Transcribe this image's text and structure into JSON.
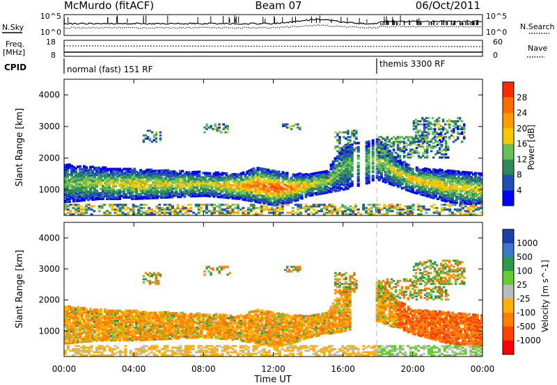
{
  "header": {
    "station": "McMurdo (fitACF)",
    "beam": "Beam 07",
    "date": "06/Oct/2011"
  },
  "noise_panel": {
    "left_label": "N.Sky",
    "right_label": "N.Search",
    "tick_top_left": "10^5",
    "tick_bottom_left": "10^0",
    "tick_top_right": "10^5",
    "tick_bottom_right": "10^0"
  },
  "freq_panel": {
    "left_label_1": "Freq.",
    "left_label_2": "[MHz]",
    "right_label": "Nave",
    "tick_top_left": "18",
    "tick_bottom_left": "8",
    "tick_top_right": "60",
    "tick_bottom_right": "0"
  },
  "cpid_panel": {
    "label": "CPID",
    "mode1": "normal (fast) 151 RF",
    "mode2": "themis 3300 RF"
  },
  "x_axis": {
    "label": "Time UT",
    "ticks": [
      "00:00",
      "04:00",
      "08:00",
      "12:00",
      "16:00",
      "20:00",
      "00:00"
    ]
  },
  "y_axis": {
    "label": "Slant Range [km]",
    "ticks": [
      "1000",
      "2000",
      "3000",
      "4000"
    ]
  },
  "power_colorbar": {
    "label": "Power [dB]",
    "ticks": [
      "4",
      "8",
      "12",
      "16",
      "20",
      "24",
      "28"
    ],
    "colors": [
      "#0000ff",
      "#1f4fb0",
      "#2e8b57",
      "#66c05a",
      "#f5c800",
      "#ff9a00",
      "#ff6a00",
      "#ff2a00"
    ]
  },
  "velocity_colorbar": {
    "label": "Velocity [m s^-1]",
    "ticks": [
      "1000",
      "500",
      "100",
      "25",
      "-25",
      "-100",
      "-500",
      "-1000"
    ],
    "colors": [
      "#1a3fa8",
      "#3b78c8",
      "#2f9a4a",
      "#66cc33",
      "#bbbbbb",
      "#ffb000",
      "#ff8000",
      "#ff4000",
      "#ff0000"
    ]
  },
  "chart_data": [
    {
      "type": "heatmap",
      "title": "Power",
      "xlabel": "Time UT",
      "ylabel": "Slant Range [km]",
      "xlim_hours": [
        0,
        24
      ],
      "ylim_km": [
        180,
        4500
      ],
      "colorbar_range_db": [
        0,
        30
      ],
      "scatter_band": [
        {
          "t": 0,
          "lo": 600,
          "hi": 1800,
          "peak": 14
        },
        {
          "t": 2,
          "lo": 700,
          "hi": 1700,
          "peak": 16
        },
        {
          "t": 4,
          "lo": 700,
          "hi": 1650,
          "peak": 20
        },
        {
          "t": 6,
          "lo": 750,
          "hi": 1600,
          "peak": 18
        },
        {
          "t": 8,
          "lo": 800,
          "hi": 1550,
          "peak": 18
        },
        {
          "t": 10,
          "lo": 700,
          "hi": 1500,
          "peak": 22
        },
        {
          "t": 11,
          "lo": 600,
          "hi": 1700,
          "peak": 28
        },
        {
          "t": 12,
          "lo": 500,
          "hi": 1600,
          "peak": 30
        },
        {
          "t": 13,
          "lo": 600,
          "hi": 1500,
          "peak": 26
        },
        {
          "t": 14,
          "lo": 800,
          "hi": 1500,
          "peak": 20
        },
        {
          "t": 15,
          "lo": 900,
          "hi": 1600,
          "peak": 16
        },
        {
          "t": 16,
          "lo": 1000,
          "hi": 2400,
          "peak": 12
        },
        {
          "t": 18,
          "lo": 1300,
          "hi": 2600,
          "peak": 16
        },
        {
          "t": 19,
          "lo": 1100,
          "hi": 2000,
          "peak": 18
        },
        {
          "t": 20,
          "lo": 900,
          "hi": 1700,
          "peak": 20
        },
        {
          "t": 22,
          "lo": 600,
          "hi": 1600,
          "peak": 20
        },
        {
          "t": 24,
          "lo": 500,
          "hi": 1500,
          "peak": 18
        }
      ]
    },
    {
      "type": "heatmap",
      "title": "Velocity",
      "xlabel": "Time UT",
      "ylabel": "Slant Range [km]",
      "xlim_hours": [
        0,
        24
      ],
      "ylim_km": [
        180,
        4500
      ],
      "colorbar_range_ms": [
        -1000,
        1000
      ],
      "scatter_band": [
        {
          "t": 0,
          "lo": 600,
          "hi": 1800,
          "vel": -100
        },
        {
          "t": 4,
          "lo": 700,
          "hi": 1650,
          "vel": -150
        },
        {
          "t": 8,
          "lo": 800,
          "hi": 1550,
          "vel": -120
        },
        {
          "t": 12,
          "lo": 600,
          "hi": 1600,
          "vel": -100
        },
        {
          "t": 16,
          "lo": 1000,
          "hi": 2600,
          "vel": -200
        },
        {
          "t": 20,
          "lo": 900,
          "hi": 1700,
          "vel": -300
        },
        {
          "t": 24,
          "lo": 600,
          "hi": 1400,
          "vel": -400
        }
      ]
    }
  ]
}
